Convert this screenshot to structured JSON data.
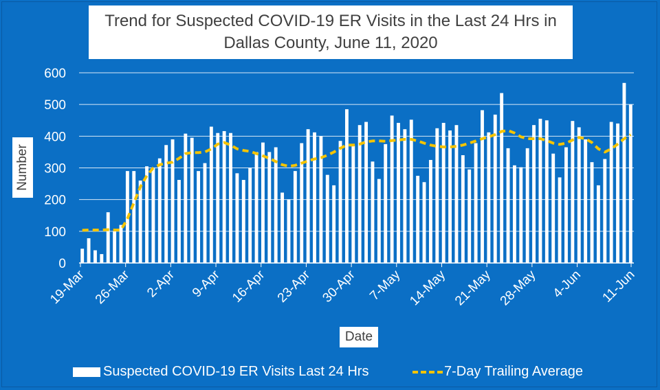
{
  "chart_data": {
    "type": "bar",
    "title": "Trend for Suspected COVID-19 ER Visits in the Last 24 Hrs in Dallas County, June 11, 2020",
    "title_lines": [
      "Trend for Suspected COVID-19 ER Visits in the Last 24 Hrs in",
      "Dallas County, June 11, 2020"
    ],
    "xlabel": "Date",
    "ylabel": "Number",
    "ylim": [
      0,
      600
    ],
    "yticks": [
      0,
      100,
      200,
      300,
      400,
      500,
      600
    ],
    "grid": true,
    "legend_position": "bottom",
    "x_tick_labels": [
      "19-Mar",
      "26-Mar",
      "2-Apr",
      "9-Apr",
      "16-Apr",
      "23-Apr",
      "30-Apr",
      "7-May",
      "14-May",
      "21-May",
      "28-May",
      "4-Jun",
      "11-Jun"
    ],
    "series": [
      {
        "name": "Suspected COVID-19 ER Visits Last 24 Hrs",
        "type": "bar",
        "color": "#ffffff",
        "values": [
          45,
          78,
          40,
          28,
          160,
          100,
          120,
          290,
          290,
          260,
          305,
          300,
          330,
          372,
          390,
          262,
          408,
          395,
          290,
          315,
          430,
          410,
          416,
          410,
          283,
          262,
          300,
          350,
          380,
          350,
          365,
          222,
          200,
          290,
          378,
          422,
          412,
          400,
          278,
          245,
          385,
          485,
          370,
          435,
          445,
          320,
          265,
          375,
          465,
          442,
          422,
          452,
          275,
          255,
          325,
          425,
          442,
          418,
          435,
          340,
          295,
          378,
          482,
          412,
          468,
          536,
          362,
          308,
          302,
          362,
          435,
          455,
          450,
          345,
          270,
          365,
          448,
          428,
          390,
          318,
          245,
          328,
          445,
          440,
          568,
          500
        ]
      },
      {
        "name": "7-Day Trailing Average",
        "type": "line",
        "style": "dashed",
        "color": "#f5c400",
        "values": [
          103,
          104,
          104,
          104,
          105,
          104,
          104,
          140,
          190,
          240,
          275,
          300,
          310,
          315,
          318,
          330,
          345,
          348,
          348,
          350,
          360,
          375,
          380,
          372,
          360,
          355,
          352,
          345,
          338,
          330,
          320,
          310,
          305,
          308,
          315,
          322,
          328,
          332,
          340,
          350,
          362,
          372,
          372,
          375,
          382,
          385,
          385,
          384,
          386,
          388,
          390,
          390,
          385,
          378,
          372,
          368,
          366,
          366,
          368,
          372,
          378,
          385,
          392,
          398,
          405,
          415,
          418,
          410,
          398,
          392,
          392,
          392,
          386,
          378,
          374,
          378,
          388,
          396,
          392,
          380,
          360,
          350,
          360,
          375,
          392,
          405
        ]
      }
    ]
  }
}
